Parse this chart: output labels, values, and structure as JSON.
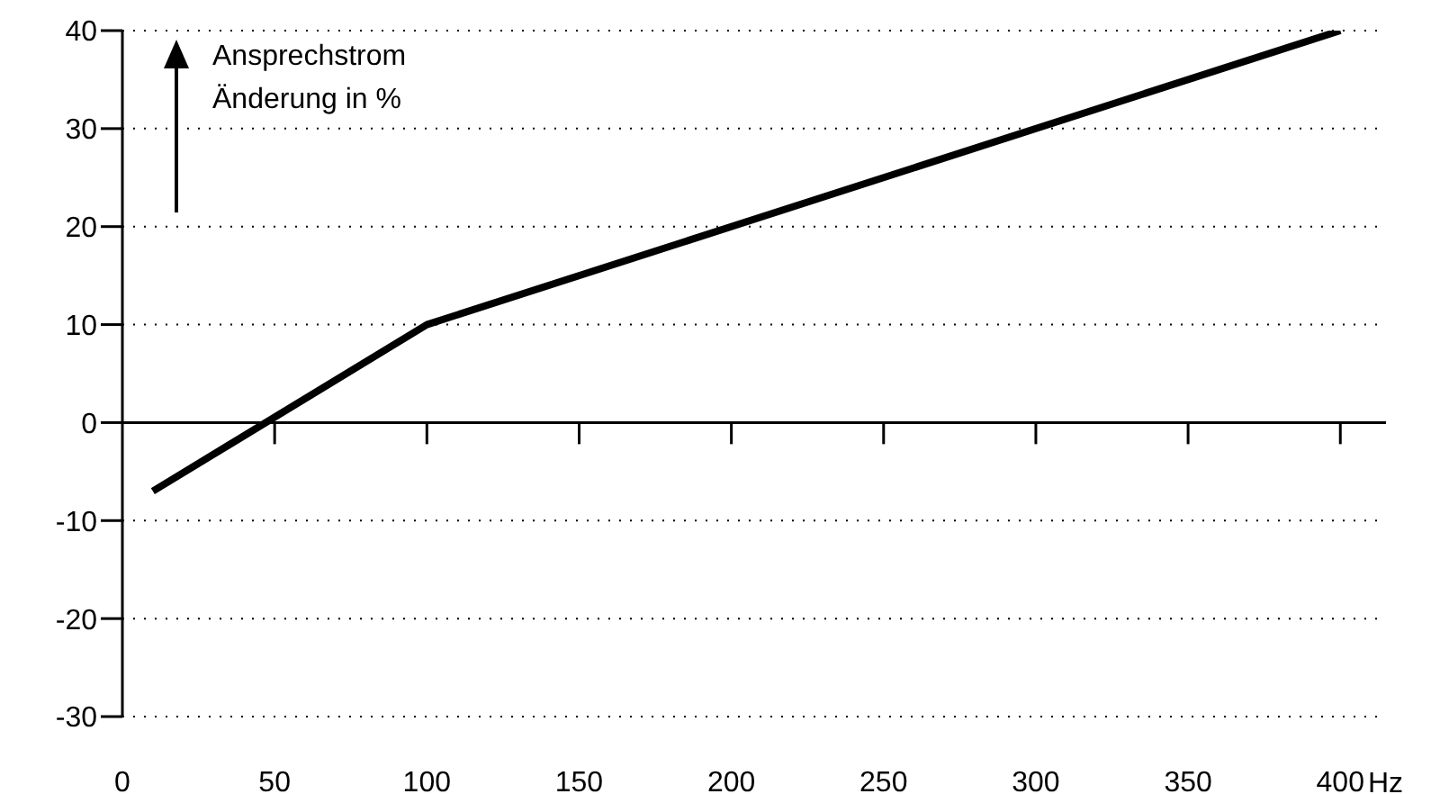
{
  "chart_data": {
    "type": "line",
    "xlabel": "Hz",
    "ylabel": "Ansprechstrom\nÄnderung in %",
    "x": [
      10,
      100,
      400
    ],
    "series": [
      {
        "color": "#000000",
        "values": [
          -7,
          10,
          40
        ]
      }
    ],
    "xlim": [
      0,
      415
    ],
    "xticks": [
      0,
      50,
      100,
      150,
      200,
      250,
      300,
      350,
      400
    ],
    "ylim": [
      -30,
      40
    ],
    "yticks": [
      -30,
      -20,
      -10,
      0,
      10,
      20,
      30,
      40
    ],
    "grid": "y",
    "legend": false,
    "marker": "none",
    "line_style": "solid"
  }
}
